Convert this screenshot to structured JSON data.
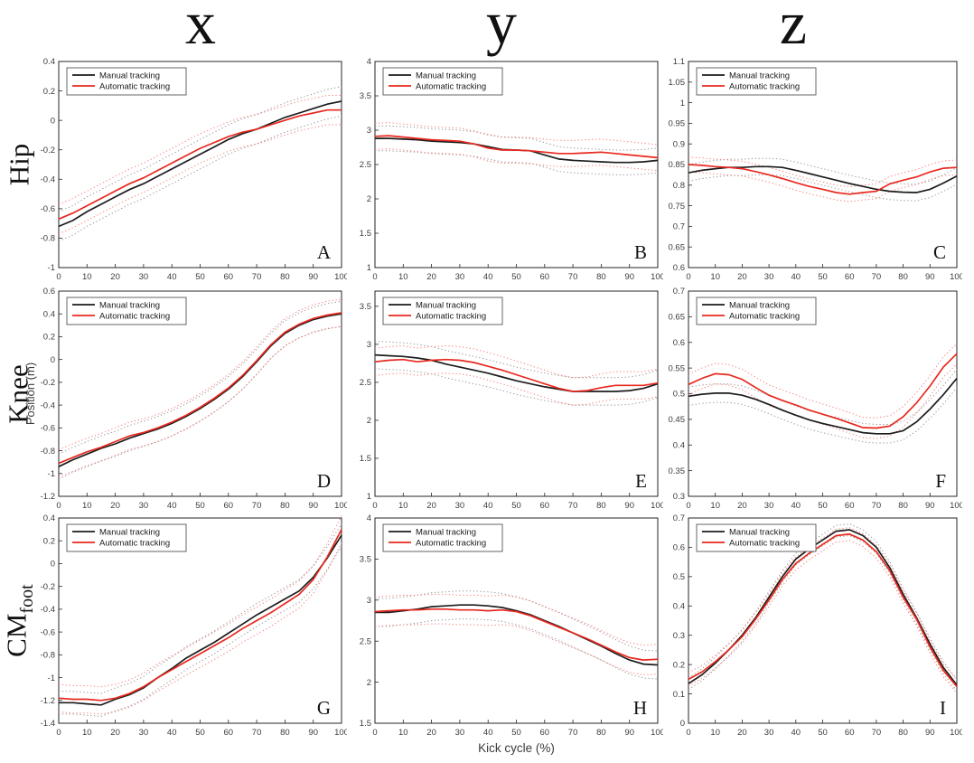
{
  "figure": {
    "col_headers": [
      "x",
      "y",
      "z"
    ],
    "row_labels": [
      {
        "main": "Hip",
        "sub": ""
      },
      {
        "main": "Knee",
        "sub": ""
      },
      {
        "main": "CM",
        "sub": "foot"
      }
    ],
    "y_axis_label": "Position (m)",
    "x_axis_label": "Kick cycle (%)",
    "legend": [
      "Manual tracking",
      "Automatic tracking"
    ],
    "colors": {
      "manual": "#1c1c1c",
      "automatic": "#e8281e",
      "manual_band": "#979797",
      "automatic_band": "#f2837d",
      "axis": "#262626",
      "tick_text": "#3c3c3c"
    }
  },
  "chart_data": [
    {
      "type": "line",
      "panel": "A",
      "row": "Hip",
      "axis": "x",
      "xlabel": "Kick cycle (%)",
      "ylabel": "Position (m)",
      "x_min": 0,
      "x_max": 100,
      "x_step": 5,
      "grid": false,
      "legend_position": "top-left",
      "ylim": [
        -1,
        0.4
      ],
      "yticks": [
        -1,
        -0.8,
        -0.6,
        -0.4,
        -0.2,
        0,
        0.2,
        0.4
      ],
      "xticks": [
        0,
        10,
        20,
        30,
        40,
        50,
        60,
        70,
        80,
        90,
        100
      ],
      "series": [
        {
          "name": "Manual tracking",
          "color_key": "manual",
          "band": 0.1,
          "values": [
            -0.72,
            -0.68,
            -0.62,
            -0.57,
            -0.52,
            -0.47,
            -0.43,
            -0.38,
            -0.33,
            -0.28,
            -0.23,
            -0.18,
            -0.13,
            -0.09,
            -0.06,
            -0.02,
            0.02,
            0.05,
            0.08,
            0.11,
            0.13
          ]
        },
        {
          "name": "Automatic tracking",
          "color_key": "automatic",
          "band": 0.1,
          "values": [
            -0.67,
            -0.63,
            -0.58,
            -0.53,
            -0.48,
            -0.43,
            -0.39,
            -0.34,
            -0.29,
            -0.24,
            -0.19,
            -0.15,
            -0.11,
            -0.08,
            -0.06,
            -0.03,
            0.0,
            0.03,
            0.05,
            0.07,
            0.07
          ]
        }
      ]
    },
    {
      "type": "line",
      "panel": "B",
      "row": "Hip",
      "axis": "y",
      "xlabel": "Kick cycle (%)",
      "ylabel": "Position (m)",
      "x_min": 0,
      "x_max": 100,
      "x_step": 5,
      "grid": false,
      "legend_position": "top-left",
      "ylim": [
        1,
        4
      ],
      "yticks": [
        1,
        1.5,
        2,
        2.5,
        3,
        3.5,
        4
      ],
      "xticks": [
        0,
        10,
        20,
        30,
        40,
        50,
        60,
        70,
        80,
        90,
        100
      ],
      "series": [
        {
          "name": "Manual tracking",
          "color_key": "manual",
          "band": 0.18,
          "values": [
            2.88,
            2.88,
            2.87,
            2.86,
            2.84,
            2.83,
            2.82,
            2.8,
            2.76,
            2.72,
            2.71,
            2.7,
            2.64,
            2.58,
            2.56,
            2.55,
            2.54,
            2.53,
            2.53,
            2.54,
            2.56
          ]
        },
        {
          "name": "Automatic tracking",
          "color_key": "automatic",
          "band": 0.19,
          "values": [
            2.91,
            2.92,
            2.9,
            2.88,
            2.86,
            2.85,
            2.84,
            2.8,
            2.74,
            2.71,
            2.71,
            2.7,
            2.68,
            2.66,
            2.66,
            2.67,
            2.68,
            2.66,
            2.64,
            2.62,
            2.6
          ]
        }
      ]
    },
    {
      "type": "line",
      "panel": "C",
      "row": "Hip",
      "axis": "z",
      "xlabel": "Kick cycle (%)",
      "ylabel": "Position (m)",
      "x_min": 0,
      "x_max": 100,
      "x_step": 5,
      "grid": false,
      "legend_position": "top-left",
      "ylim": [
        0.6,
        1.1
      ],
      "yticks": [
        0.6,
        0.65,
        0.7,
        0.75,
        0.8,
        0.85,
        0.9,
        0.95,
        1,
        1.05,
        1.1
      ],
      "xticks": [
        0,
        10,
        20,
        30,
        40,
        50,
        60,
        70,
        80,
        90,
        100
      ],
      "series": [
        {
          "name": "Manual tracking",
          "color_key": "manual",
          "band": 0.02,
          "values": [
            0.83,
            0.836,
            0.84,
            0.843,
            0.843,
            0.845,
            0.845,
            0.843,
            0.836,
            0.828,
            0.82,
            0.812,
            0.804,
            0.797,
            0.79,
            0.785,
            0.783,
            0.782,
            0.79,
            0.805,
            0.822
          ]
        },
        {
          "name": "Automatic tracking",
          "color_key": "automatic",
          "band": 0.018,
          "values": [
            0.85,
            0.848,
            0.845,
            0.843,
            0.84,
            0.833,
            0.825,
            0.816,
            0.806,
            0.797,
            0.79,
            0.782,
            0.778,
            0.782,
            0.785,
            0.803,
            0.812,
            0.82,
            0.832,
            0.841,
            0.843
          ]
        }
      ]
    },
    {
      "type": "line",
      "panel": "D",
      "row": "Knee",
      "axis": "x",
      "xlabel": "Kick cycle (%)",
      "ylabel": "Position (m)",
      "x_min": 0,
      "x_max": 100,
      "x_step": 5,
      "grid": false,
      "legend_position": "top-left",
      "ylim": [
        -1.2,
        0.6
      ],
      "yticks": [
        -1.2,
        -1,
        -0.8,
        -0.6,
        -0.4,
        -0.2,
        0,
        0.2,
        0.4,
        0.6
      ],
      "xticks": [
        0,
        10,
        20,
        30,
        40,
        50,
        60,
        70,
        80,
        90,
        100
      ],
      "series": [
        {
          "name": "Manual tracking",
          "color_key": "manual",
          "band": 0.11,
          "values": [
            -0.94,
            -0.88,
            -0.83,
            -0.78,
            -0.74,
            -0.69,
            -0.65,
            -0.61,
            -0.56,
            -0.5,
            -0.43,
            -0.35,
            -0.26,
            -0.15,
            -0.02,
            0.12,
            0.23,
            0.3,
            0.35,
            0.38,
            0.4
          ]
        },
        {
          "name": "Automatic tracking",
          "color_key": "automatic",
          "band": 0.12,
          "values": [
            -0.91,
            -0.86,
            -0.81,
            -0.77,
            -0.72,
            -0.67,
            -0.64,
            -0.6,
            -0.55,
            -0.49,
            -0.42,
            -0.34,
            -0.25,
            -0.14,
            -0.01,
            0.13,
            0.24,
            0.31,
            0.36,
            0.39,
            0.41
          ]
        }
      ]
    },
    {
      "type": "line",
      "panel": "E",
      "row": "Knee",
      "axis": "y",
      "xlabel": "Kick cycle (%)",
      "ylabel": "Position (m)",
      "x_min": 0,
      "x_max": 100,
      "x_step": 5,
      "grid": false,
      "legend_position": "top-left",
      "ylim": [
        1,
        3.7
      ],
      "yticks": [
        1,
        1.5,
        2,
        2.5,
        3,
        3.5
      ],
      "xticks": [
        0,
        10,
        20,
        30,
        40,
        50,
        60,
        70,
        80,
        90,
        100
      ],
      "series": [
        {
          "name": "Manual tracking",
          "color_key": "manual",
          "band": 0.18,
          "values": [
            2.86,
            2.85,
            2.84,
            2.82,
            2.79,
            2.74,
            2.7,
            2.66,
            2.62,
            2.57,
            2.52,
            2.48,
            2.44,
            2.41,
            2.38,
            2.38,
            2.38,
            2.38,
            2.39,
            2.42,
            2.48
          ]
        },
        {
          "name": "Automatic tracking",
          "color_key": "automatic",
          "band": 0.18,
          "values": [
            2.77,
            2.79,
            2.8,
            2.77,
            2.79,
            2.8,
            2.79,
            2.76,
            2.71,
            2.66,
            2.6,
            2.54,
            2.48,
            2.42,
            2.38,
            2.39,
            2.43,
            2.46,
            2.46,
            2.46,
            2.49
          ]
        }
      ]
    },
    {
      "type": "line",
      "panel": "F",
      "row": "Knee",
      "axis": "z",
      "xlabel": "Kick cycle (%)",
      "ylabel": "Position (m)",
      "x_min": 0,
      "x_max": 100,
      "x_step": 5,
      "grid": false,
      "legend_position": "top-left",
      "ylim": [
        0.3,
        0.7
      ],
      "yticks": [
        0.3,
        0.35,
        0.4,
        0.45,
        0.5,
        0.55,
        0.6,
        0.65,
        0.7
      ],
      "xticks": [
        0,
        10,
        20,
        30,
        40,
        50,
        60,
        70,
        80,
        90,
        100
      ],
      "series": [
        {
          "name": "Manual tracking",
          "color_key": "manual",
          "band": 0.018,
          "values": [
            0.495,
            0.499,
            0.501,
            0.501,
            0.497,
            0.489,
            0.479,
            0.468,
            0.458,
            0.449,
            0.442,
            0.436,
            0.43,
            0.424,
            0.422,
            0.422,
            0.428,
            0.445,
            0.47,
            0.498,
            0.53
          ]
        },
        {
          "name": "Automatic tracking",
          "color_key": "automatic",
          "band": 0.02,
          "values": [
            0.518,
            0.53,
            0.539,
            0.537,
            0.528,
            0.512,
            0.497,
            0.487,
            0.478,
            0.468,
            0.46,
            0.452,
            0.443,
            0.434,
            0.433,
            0.437,
            0.455,
            0.482,
            0.515,
            0.552,
            0.578
          ]
        }
      ]
    },
    {
      "type": "line",
      "panel": "G",
      "row": "CM foot",
      "axis": "x",
      "xlabel": "Kick cycle (%)",
      "ylabel": "Position (m)",
      "x_min": 0,
      "x_max": 100,
      "x_step": 5,
      "grid": false,
      "legend_position": "top-left",
      "ylim": [
        -1.4,
        0.4
      ],
      "yticks": [
        -1.4,
        -1.2,
        -1,
        -0.8,
        -0.6,
        -0.4,
        -0.2,
        0,
        0.2,
        0.4
      ],
      "xticks": [
        0,
        10,
        20,
        30,
        40,
        50,
        60,
        70,
        80,
        90,
        100
      ],
      "series": [
        {
          "name": "Manual tracking",
          "color_key": "manual",
          "band": 0.1,
          "values": [
            -1.22,
            -1.22,
            -1.23,
            -1.24,
            -1.19,
            -1.15,
            -1.09,
            -1.0,
            -0.92,
            -0.83,
            -0.76,
            -0.69,
            -0.61,
            -0.53,
            -0.45,
            -0.38,
            -0.31,
            -0.24,
            -0.12,
            0.05,
            0.25
          ]
        },
        {
          "name": "Automatic tracking",
          "color_key": "automatic",
          "band": 0.12,
          "values": [
            -1.18,
            -1.19,
            -1.19,
            -1.2,
            -1.18,
            -1.14,
            -1.08,
            -1.0,
            -0.93,
            -0.86,
            -0.79,
            -0.72,
            -0.65,
            -0.57,
            -0.5,
            -0.43,
            -0.35,
            -0.27,
            -0.14,
            0.06,
            0.3
          ]
        }
      ]
    },
    {
      "type": "line",
      "panel": "H",
      "row": "CM foot",
      "axis": "y",
      "xlabel": "Kick cycle (%)",
      "ylabel": "Position (m)",
      "x_min": 0,
      "x_max": 100,
      "x_step": 5,
      "grid": false,
      "legend_position": "top-left",
      "ylim": [
        1.5,
        4
      ],
      "yticks": [
        1.5,
        2,
        2.5,
        3,
        3.5,
        4
      ],
      "xticks": [
        0,
        10,
        20,
        30,
        40,
        50,
        60,
        70,
        80,
        90,
        100
      ],
      "series": [
        {
          "name": "Manual tracking",
          "color_key": "manual",
          "band": 0.17,
          "values": [
            2.85,
            2.85,
            2.87,
            2.89,
            2.92,
            2.93,
            2.94,
            2.94,
            2.93,
            2.91,
            2.87,
            2.82,
            2.75,
            2.68,
            2.6,
            2.52,
            2.44,
            2.35,
            2.27,
            2.22,
            2.21
          ]
        },
        {
          "name": "Automatic tracking",
          "color_key": "automatic",
          "band": 0.18,
          "values": [
            2.86,
            2.87,
            2.88,
            2.88,
            2.89,
            2.89,
            2.88,
            2.88,
            2.87,
            2.88,
            2.86,
            2.81,
            2.74,
            2.67,
            2.6,
            2.53,
            2.45,
            2.37,
            2.3,
            2.27,
            2.28
          ]
        }
      ]
    },
    {
      "type": "line",
      "panel": "I",
      "row": "CM foot",
      "axis": "z",
      "xlabel": "Kick cycle (%)",
      "ylabel": "Position (m)",
      "x_min": 0,
      "x_max": 100,
      "x_step": 5,
      "grid": false,
      "legend_position": "top-left",
      "ylim": [
        0,
        0.7
      ],
      "yticks": [
        0,
        0.1,
        0.2,
        0.3,
        0.4,
        0.5,
        0.6,
        0.7
      ],
      "xticks": [
        0,
        10,
        20,
        30,
        40,
        50,
        60,
        70,
        80,
        90,
        100
      ],
      "series": [
        {
          "name": "Manual tracking",
          "color_key": "manual",
          "band": 0.02,
          "values": [
            0.135,
            0.165,
            0.205,
            0.25,
            0.3,
            0.36,
            0.43,
            0.5,
            0.56,
            0.595,
            0.625,
            0.655,
            0.66,
            0.64,
            0.6,
            0.53,
            0.44,
            0.36,
            0.27,
            0.19,
            0.13
          ]
        },
        {
          "name": "Automatic tracking",
          "color_key": "automatic",
          "band": 0.022,
          "values": [
            0.15,
            0.175,
            0.21,
            0.25,
            0.295,
            0.355,
            0.42,
            0.49,
            0.545,
            0.58,
            0.61,
            0.64,
            0.645,
            0.625,
            0.585,
            0.52,
            0.43,
            0.355,
            0.26,
            0.18,
            0.125
          ]
        }
      ]
    }
  ]
}
